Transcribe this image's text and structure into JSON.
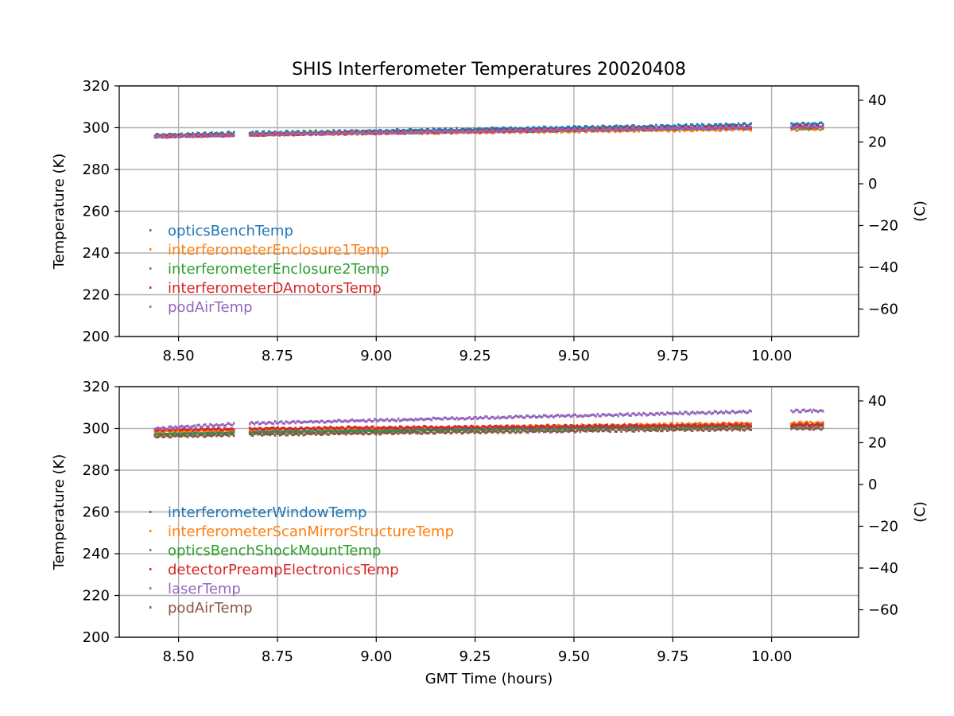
{
  "title": "SHIS Interferometer Temperatures 20020408",
  "chart_data": [
    {
      "type": "scatter",
      "title": "SHIS Interferometer Temperatures 20020408",
      "xlabel": "",
      "ylabel": "Temperature (K)",
      "ylabel_right": "(C)",
      "xlim": [
        8.35,
        10.22
      ],
      "ylim": [
        200,
        320
      ],
      "ylim_right": [
        -73.15,
        46.85
      ],
      "xticks": [
        8.5,
        8.75,
        9.0,
        9.25,
        9.5,
        9.75,
        10.0
      ],
      "xtick_labels": [
        "8.50",
        "8.75",
        "9.00",
        "9.25",
        "9.50",
        "9.75",
        "10.00"
      ],
      "yticks": [
        200,
        220,
        240,
        260,
        280,
        300,
        320
      ],
      "ytick_labels": [
        "200",
        "220",
        "240",
        "260",
        "280",
        "300",
        "320"
      ],
      "yticks_right": [
        -60,
        -40,
        -20,
        0,
        20,
        40
      ],
      "ytick_labels_right": [
        "−60",
        "−40",
        "−20",
        "0",
        "20",
        "40"
      ],
      "grid": true,
      "legend": "lower-left",
      "x_segments": [
        [
          8.44,
          8.64
        ],
        [
          8.68,
          9.95
        ],
        [
          10.05,
          10.13
        ]
      ],
      "series": [
        {
          "name": "opticsBenchTemp",
          "color": "#1f77b4",
          "x": [
            8.44,
            8.64,
            8.68,
            9.95,
            10.05,
            10.13
          ],
          "values": [
            296.8,
            297.7,
            297.8,
            301.8,
            302.0,
            302.2
          ]
        },
        {
          "name": "interferometerEnclosure1Temp",
          "color": "#ff7f0e",
          "x": [
            8.44,
            8.64,
            8.68,
            9.95,
            10.05,
            10.13
          ],
          "values": [
            296.2,
            296.8,
            297.0,
            299.5,
            299.5,
            299.6
          ]
        },
        {
          "name": "interferometerEnclosure2Temp",
          "color": "#2ca02c",
          "x": [
            8.44,
            8.64,
            8.68,
            9.95,
            10.05,
            10.13
          ],
          "values": [
            296.4,
            297.0,
            297.2,
            300.2,
            300.2,
            300.3
          ]
        },
        {
          "name": "interferometerDAmotorsTemp",
          "color": "#d62728",
          "x": [
            8.44,
            8.64,
            8.68,
            9.95,
            10.05,
            10.13
          ],
          "values": [
            296.1,
            296.8,
            297.0,
            300.6,
            300.8,
            300.9
          ]
        },
        {
          "name": "podAirTemp",
          "color": "#9467bd",
          "x": [
            8.44,
            8.64,
            8.68,
            9.95,
            10.05,
            10.13
          ],
          "values": [
            296.0,
            296.7,
            297.0,
            300.4,
            300.5,
            300.7
          ]
        }
      ]
    },
    {
      "type": "scatter",
      "title": "",
      "xlabel": "GMT Time (hours)",
      "ylabel": "Temperature (K)",
      "ylabel_right": "(C)",
      "xlim": [
        8.35,
        10.22
      ],
      "ylim": [
        200,
        320
      ],
      "ylim_right": [
        -73.15,
        46.85
      ],
      "xticks": [
        8.5,
        8.75,
        9.0,
        9.25,
        9.5,
        9.75,
        10.0
      ],
      "xtick_labels": [
        "8.50",
        "8.75",
        "9.00",
        "9.25",
        "9.50",
        "9.75",
        "10.00"
      ],
      "yticks": [
        200,
        220,
        240,
        260,
        280,
        300,
        320
      ],
      "ytick_labels": [
        "200",
        "220",
        "240",
        "260",
        "280",
        "300",
        "320"
      ],
      "yticks_right": [
        -60,
        -40,
        -20,
        0,
        20,
        40
      ],
      "ytick_labels_right": [
        "−60",
        "−40",
        "−20",
        "0",
        "20",
        "40"
      ],
      "grid": true,
      "legend": "lower-left",
      "x_segments": [
        [
          8.44,
          8.64
        ],
        [
          8.68,
          9.95
        ],
        [
          10.05,
          10.13
        ]
      ],
      "series": [
        {
          "name": "interferometerWindowTemp",
          "color": "#1f77b4",
          "x": [
            8.44,
            8.64,
            8.68,
            9.95,
            10.05,
            10.13
          ],
          "values": [
            298.0,
            298.8,
            299.0,
            302.0,
            302.2,
            302.3
          ]
        },
        {
          "name": "interferometerScanMirrorStructureTemp",
          "color": "#ff7f0e",
          "x": [
            8.44,
            8.64,
            8.68,
            9.95,
            10.05,
            10.13
          ],
          "values": [
            298.6,
            299.4,
            299.6,
            302.6,
            302.8,
            302.9
          ]
        },
        {
          "name": "opticsBenchShockMountTemp",
          "color": "#2ca02c",
          "x": [
            8.44,
            8.64,
            8.68,
            9.95,
            10.05,
            10.13
          ],
          "values": [
            297.2,
            297.8,
            298.0,
            300.8,
            301.0,
            301.1
          ]
        },
        {
          "name": "detectorPreampElectronicsTemp",
          "color": "#d62728",
          "x": [
            8.44,
            8.64,
            8.68,
            9.95,
            10.05,
            10.13
          ],
          "values": [
            299.6,
            300.0,
            300.2,
            301.9,
            302.0,
            302.1
          ]
        },
        {
          "name": "laserTemp",
          "color": "#9467bd",
          "x": [
            8.44,
            8.64,
            8.68,
            9.95,
            10.05,
            10.13
          ],
          "values": [
            300.2,
            302.3,
            302.8,
            308.3,
            308.6,
            308.7
          ]
        },
        {
          "name": "podAirTemp",
          "color": "#8c564b",
          "x": [
            8.44,
            8.64,
            8.68,
            9.95,
            10.05,
            10.13
          ],
          "values": [
            296.5,
            297.2,
            297.4,
            300.0,
            300.2,
            300.3
          ]
        }
      ]
    }
  ]
}
